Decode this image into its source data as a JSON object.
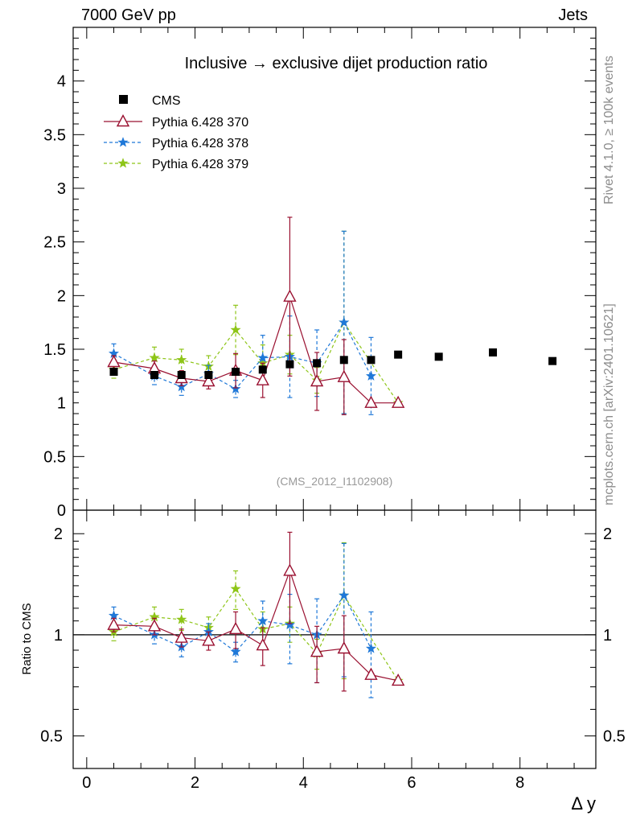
{
  "header": {
    "left": "7000 GeV pp",
    "right": "Jets"
  },
  "side_labels": {
    "rivet": "Rivet 4.1.0, ≥ 100k events",
    "mcplots": "mcplots.cern.ch [arXiv:2401.10621]"
  },
  "chart_data": [
    {
      "type": "scatter",
      "panel": "main",
      "title": "Inclusive → exclusive dijet production ratio",
      "watermark": "(CMS_2012_I1102908)",
      "xlabel": "Δ y",
      "ylabel": "",
      "xlim": [
        -0.25,
        9.4
      ],
      "ylim": [
        0,
        4.5
      ],
      "yticks": [
        0,
        0.5,
        1,
        1.5,
        2,
        2.5,
        3,
        3.5,
        4
      ],
      "ytick_labels": [
        "0",
        "0.5",
        "1",
        "1.5",
        "2",
        "2.5",
        "3",
        "3.5",
        "4"
      ],
      "legend_position": "top-left",
      "series": [
        {
          "name": "CMS",
          "style": "data",
          "color": "#000000",
          "x": [
            0.5,
            1.25,
            1.75,
            2.25,
            2.75,
            3.25,
            3.75,
            4.25,
            4.75,
            5.25,
            5.75,
            6.5,
            7.5,
            8.6
          ],
          "y": [
            1.29,
            1.26,
            1.26,
            1.26,
            1.29,
            1.31,
            1.36,
            1.37,
            1.4,
            1.4,
            1.45,
            1.43,
            1.47,
            1.39
          ],
          "err": [
            0.03,
            0.03,
            0.03,
            0.03,
            0.03,
            0.03,
            0.03,
            0.03,
            0.03,
            0.03,
            0.03,
            0.03,
            0.03,
            0.03
          ]
        },
        {
          "name": "Pythia 6.428 370",
          "style": "solid-triangle",
          "color": "#9a1030",
          "x": [
            0.5,
            1.25,
            1.75,
            2.25,
            2.75,
            3.25,
            3.75,
            4.25,
            4.75,
            5.25,
            5.75
          ],
          "y": [
            1.38,
            1.32,
            1.23,
            1.2,
            1.3,
            1.21,
            1.99,
            1.2,
            1.24,
            1.0,
            1.0
          ],
          "err": [
            0.06,
            0.07,
            0.07,
            0.07,
            0.16,
            0.16,
            0.74,
            0.27,
            0.35,
            0.0,
            0.0
          ]
        },
        {
          "name": "Pythia 6.428 378",
          "style": "dashed-star",
          "color": "#1f78d8",
          "x": [
            0.5,
            1.25,
            1.75,
            2.25,
            2.75,
            3.25,
            3.75,
            4.25,
            4.75,
            5.25
          ],
          "y": [
            1.46,
            1.25,
            1.15,
            1.27,
            1.13,
            1.42,
            1.43,
            1.37,
            1.75,
            1.25
          ],
          "err": [
            0.09,
            0.08,
            0.08,
            0.08,
            0.08,
            0.21,
            0.38,
            0.31,
            0.85,
            0.36
          ]
        },
        {
          "name": "Pythia 6.428 379",
          "style": "dashed-star",
          "color": "#8ec518",
          "x": [
            0.5,
            1.25,
            1.75,
            2.25,
            2.75,
            3.25,
            3.75,
            4.25,
            4.75,
            5.75
          ],
          "y": [
            1.31,
            1.42,
            1.4,
            1.34,
            1.68,
            1.37,
            1.45,
            1.21,
            1.75,
            1.0
          ],
          "err": [
            0.08,
            0.1,
            0.1,
            0.1,
            0.23,
            0.17,
            0.18,
            0.12,
            0.85,
            0.0
          ]
        }
      ]
    },
    {
      "type": "scatter",
      "panel": "ratio",
      "ylabel": "Ratio to CMS",
      "xlabel": "Δ y",
      "xlim": [
        -0.25,
        9.4
      ],
      "ylim": [
        0.4,
        2.35
      ],
      "ylog": true,
      "reference_line": 1,
      "yticks": [
        0.5,
        1,
        2
      ],
      "ytick_labels": [
        "0.5",
        "1",
        "2"
      ],
      "xticks": [
        0,
        2,
        4,
        6,
        8
      ],
      "xtick_labels": [
        "0",
        "2",
        "4",
        "6",
        "8"
      ],
      "series": [
        {
          "name": "Pythia 6.428 370",
          "style": "solid-triangle",
          "color": "#9a1030",
          "x": [
            0.5,
            1.25,
            1.75,
            2.25,
            2.75,
            3.25,
            3.75,
            4.25,
            4.75,
            5.25,
            5.75
          ],
          "y": [
            1.07,
            1.06,
            0.98,
            0.96,
            1.04,
            0.93,
            1.55,
            0.89,
            0.91,
            0.76,
            0.73
          ],
          "err": [
            0.05,
            0.06,
            0.06,
            0.06,
            0.13,
            0.12,
            0.47,
            0.17,
            0.23,
            0.0,
            0.0
          ]
        },
        {
          "name": "Pythia 6.428 378",
          "style": "dashed-star",
          "color": "#1f78d8",
          "x": [
            0.5,
            1.25,
            1.75,
            2.25,
            2.75,
            3.25,
            3.75,
            4.25,
            4.75,
            5.25
          ],
          "y": [
            1.14,
            1.0,
            0.92,
            1.02,
            0.89,
            1.1,
            1.07,
            1.0,
            1.31,
            0.91
          ],
          "err": [
            0.07,
            0.06,
            0.06,
            0.06,
            0.06,
            0.16,
            0.25,
            0.28,
            0.56,
            0.26
          ]
        },
        {
          "name": "Pythia 6.428 379",
          "style": "dashed-star",
          "color": "#8ec518",
          "x": [
            0.5,
            1.25,
            1.75,
            2.25,
            2.75,
            3.25,
            3.75,
            4.25,
            4.75,
            5.75
          ],
          "y": [
            1.02,
            1.13,
            1.11,
            1.05,
            1.37,
            1.04,
            1.08,
            0.88,
            1.31,
            0.73
          ],
          "err": [
            0.06,
            0.08,
            0.08,
            0.08,
            0.18,
            0.13,
            0.13,
            0.09,
            0.57,
            0.0
          ]
        }
      ]
    }
  ]
}
